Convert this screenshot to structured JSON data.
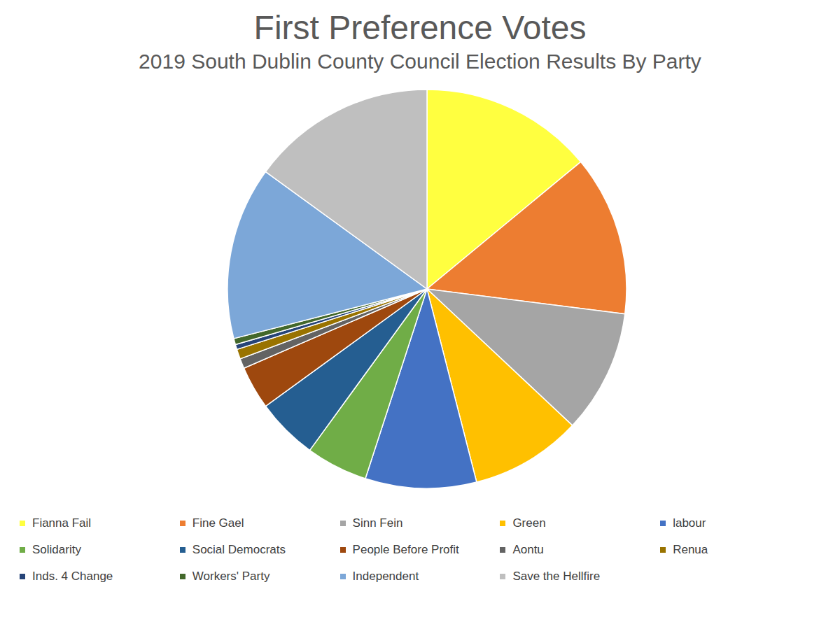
{
  "chart_data": {
    "type": "pie",
    "title": "First Preference Votes",
    "subtitle": "2019 South Dublin County Council Election Results By Party",
    "categories": [
      "Fianna Fail",
      "Fine Gael",
      "Sinn Fein",
      "Green",
      "labour",
      "Solidarity",
      "Social Democrats",
      "People Before Profit",
      "Aontu",
      "Renua",
      "Inds. 4 Change",
      "Workers' Party",
      "Independent",
      "Save the Hellfire"
    ],
    "values": [
      14,
      13,
      10,
      9,
      9,
      5,
      5,
      3.5,
      0.8,
      0.8,
      0.4,
      0.5,
      14,
      15
    ],
    "colors": [
      "#ffff40",
      "#ed7d31",
      "#a5a5a5",
      "#ffc000",
      "#4472c4",
      "#70ad47",
      "#255e91",
      "#9e480e",
      "#636363",
      "#997300",
      "#264478",
      "#43682b",
      "#7ca7d8",
      "#bfbfbf"
    ],
    "legend": "bottom",
    "data_labels": false
  }
}
